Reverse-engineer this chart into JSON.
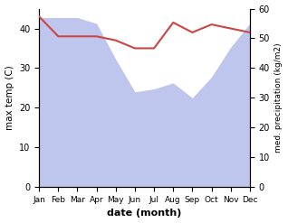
{
  "months": [
    "Jan",
    "Feb",
    "Mar",
    "Apr",
    "May",
    "Jun",
    "Jul",
    "Aug",
    "Sep",
    "Oct",
    "Nov",
    "Dec"
  ],
  "month_indices": [
    0,
    1,
    2,
    3,
    4,
    5,
    6,
    7,
    8,
    9,
    10,
    11
  ],
  "temp_max": [
    43,
    38,
    38,
    38,
    37,
    35,
    35,
    41.5,
    39,
    41,
    40,
    39
  ],
  "precipitation": [
    57,
    57,
    57,
    55,
    43,
    32,
    33,
    35,
    30,
    37,
    47,
    55
  ],
  "temp_color": "#cc4444",
  "precip_color": "#aab4e8",
  "precip_fill_alpha": 0.75,
  "temp_ylim": [
    0,
    45
  ],
  "precip_ylim": [
    0,
    60
  ],
  "temp_yticks": [
    0,
    10,
    20,
    30,
    40
  ],
  "precip_yticks": [
    0,
    10,
    20,
    30,
    40,
    50,
    60
  ],
  "xlabel": "date (month)",
  "ylabel_left": "max temp (C)",
  "ylabel_right": "med. precipitation (kg/m2)",
  "fig_width": 3.18,
  "fig_height": 2.47,
  "dpi": 100
}
